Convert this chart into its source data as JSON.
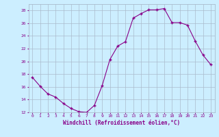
{
  "x": [
    0,
    1,
    2,
    3,
    4,
    5,
    6,
    7,
    8,
    9,
    10,
    11,
    12,
    13,
    14,
    15,
    16,
    17,
    18,
    19,
    20,
    21,
    22,
    23
  ],
  "y": [
    17.5,
    16.1,
    14.9,
    14.4,
    13.4,
    12.6,
    12.1,
    12.0,
    13.1,
    16.2,
    20.3,
    22.4,
    23.1,
    26.8,
    27.5,
    28.1,
    28.1,
    28.3,
    26.1,
    26.1,
    25.7,
    23.2,
    21.0,
    19.5
  ],
  "ylim": [
    12,
    29
  ],
  "yticks": [
    12,
    14,
    16,
    18,
    20,
    22,
    24,
    26,
    28
  ],
  "xticks": [
    0,
    1,
    2,
    3,
    4,
    5,
    6,
    7,
    8,
    9,
    10,
    11,
    12,
    13,
    14,
    15,
    16,
    17,
    18,
    19,
    20,
    21,
    22,
    23
  ],
  "xlabel": "Windchill (Refroidissement éolien,°C)",
  "line_color": "#880088",
  "marker": "+",
  "bg_color": "#cceeff",
  "grid_color": "#aabbcc",
  "xlabel_color": "#880088",
  "tick_color": "#880088"
}
